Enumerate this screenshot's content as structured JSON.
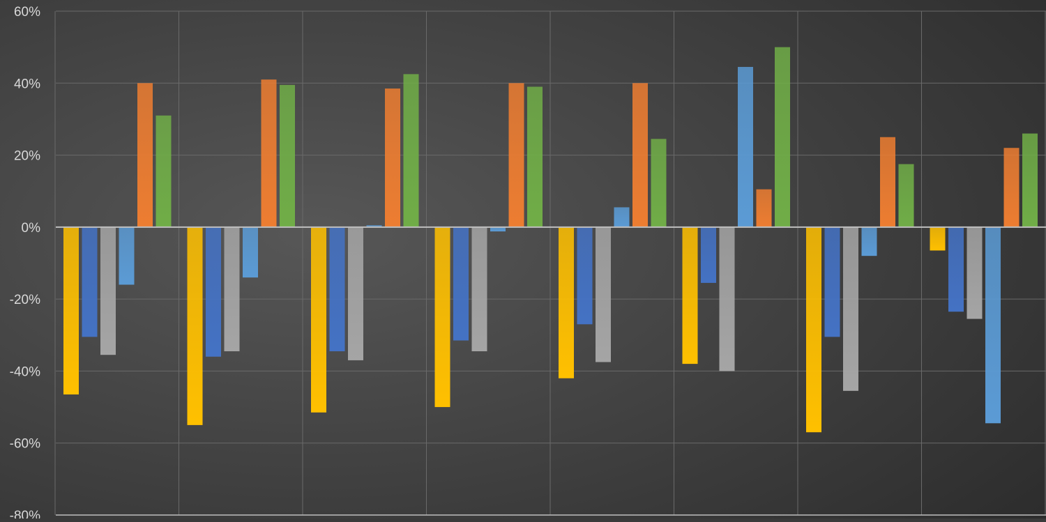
{
  "chart_data": {
    "type": "bar",
    "title": "",
    "xlabel": "",
    "ylabel": "",
    "ylim": [
      -0.8,
      0.6
    ],
    "yticks": [
      -0.8,
      -0.6,
      -0.4,
      -0.2,
      0,
      0.2,
      0.4,
      0.6
    ],
    "ytick_labels": [
      "-80%",
      "-60%",
      "-40%",
      "-20%",
      "0%",
      "20%",
      "40%",
      "60%"
    ],
    "grid": true,
    "legend": "none",
    "group_count": 8,
    "series": [
      {
        "color": "#ffc000",
        "values": [
          -0.465,
          -0.55,
          -0.515,
          -0.5,
          -0.42,
          -0.38,
          -0.57,
          -0.065
        ]
      },
      {
        "color": "#4472c4",
        "values": [
          -0.305,
          -0.36,
          -0.345,
          -0.315,
          -0.27,
          -0.155,
          -0.305,
          -0.235
        ]
      },
      {
        "color": "#a5a5a5",
        "values": [
          -0.355,
          -0.345,
          -0.37,
          -0.345,
          -0.375,
          -0.4,
          -0.455,
          -0.255
        ]
      },
      {
        "color": "#5b9bd5",
        "values": [
          -0.16,
          -0.14,
          0.005,
          -0.012,
          0.055,
          0.445,
          -0.08,
          -0.545
        ]
      },
      {
        "color": "#ed7d31",
        "values": [
          0.4,
          0.41,
          0.385,
          0.4,
          0.4,
          0.105,
          0.25,
          0.22
        ]
      },
      {
        "color": "#70ad47",
        "values": [
          0.31,
          0.395,
          0.425,
          0.39,
          0.245,
          0.5,
          0.175,
          0.26
        ]
      }
    ]
  },
  "colors": {
    "background": "#3a3a3a",
    "grid": "#6a6a6a",
    "zero_line": "#bfbfbf",
    "tick_text": "#d9d9d9"
  }
}
